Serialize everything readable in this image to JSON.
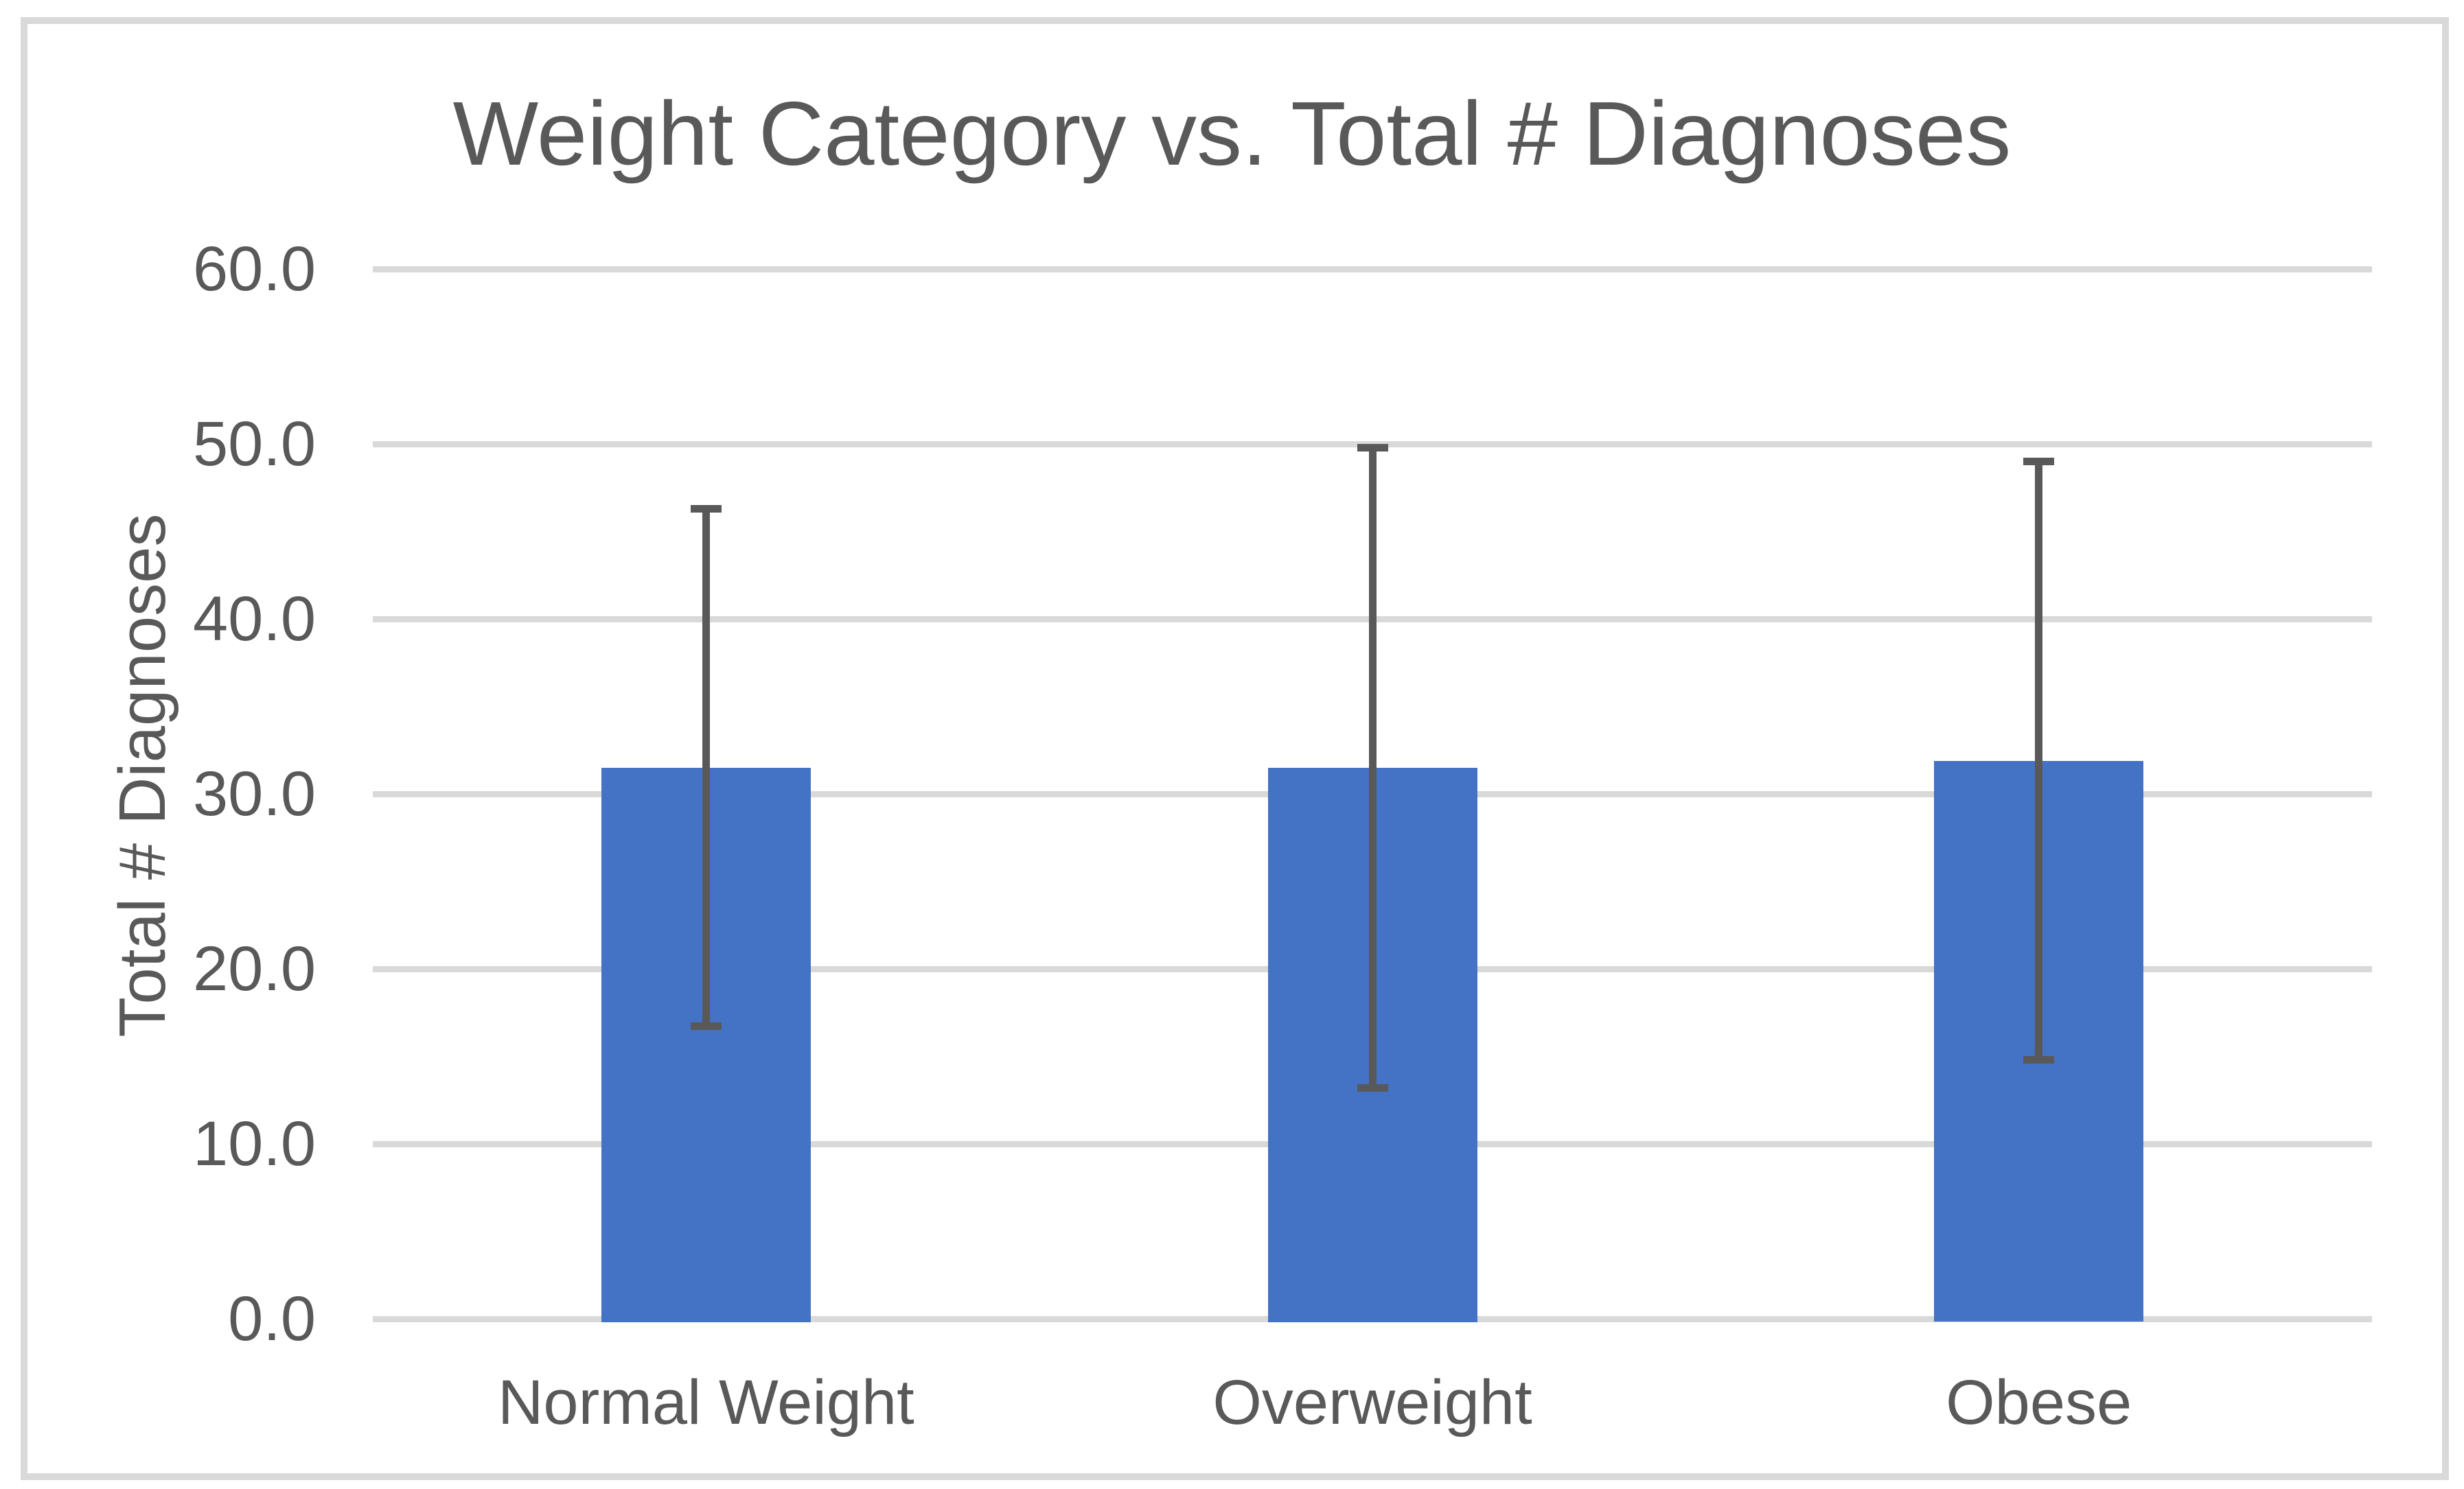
{
  "chart_data": {
    "type": "bar",
    "title": "Weight Category vs. Total # Diagnoses",
    "xlabel": "",
    "ylabel": "Total # Diagnoses",
    "categories": [
      "Normal Weight",
      "Overweight",
      "Obese"
    ],
    "values": [
      31.5,
      31.5,
      31.9
    ],
    "error_bars": {
      "style": "symmetric-caps",
      "upper": [
        46.5,
        50.0,
        49.2
      ],
      "lower": [
        16.5,
        13.0,
        14.6
      ],
      "plus_minus": [
        15.0,
        18.5,
        17.3
      ]
    },
    "ylim": [
      0,
      60
    ],
    "ytick_step": 10,
    "ytick_labels": [
      "0.0",
      "10.0",
      "20.0",
      "30.0",
      "40.0",
      "50.0",
      "60.0"
    ],
    "grid": "horizontal",
    "legend": "none",
    "colors": {
      "bar_fill": "#4472c4",
      "error_bar": "#595959",
      "gridline": "#d9d9d9",
      "text": "#595959",
      "chart_border": "#d9d9d9",
      "background": "#ffffff"
    }
  }
}
